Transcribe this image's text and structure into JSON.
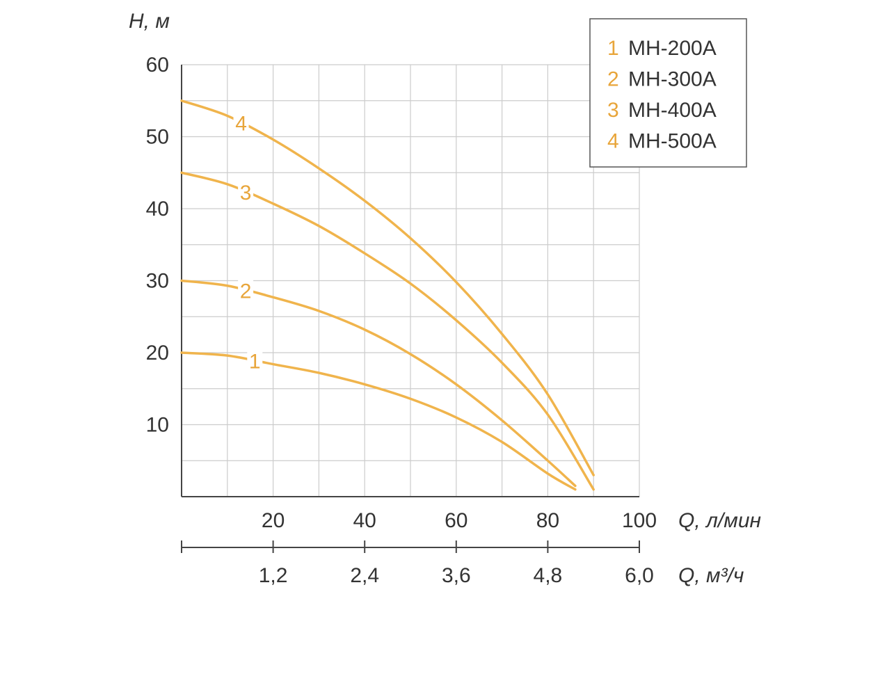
{
  "colors": {
    "curve": "#f0b44c",
    "curve_label": "#e8a53a",
    "grid": "#cccccc",
    "axis": "#444444",
    "text": "#333333"
  },
  "chart_data": {
    "type": "line",
    "ylabel": "H, м",
    "xlabel": "Q, л/мин",
    "xlabel2": "Q, м³/ч",
    "xlim": [
      0,
      100
    ],
    "ylim": [
      0,
      60
    ],
    "grid": true,
    "legend_position": "top-right",
    "yticks": [
      "10",
      "20",
      "30",
      "40",
      "50",
      "60"
    ],
    "xticks": [
      "20",
      "40",
      "60",
      "80",
      "100"
    ],
    "xticks2": [
      "1,2",
      "2,4",
      "3,6",
      "4,8",
      "6,0"
    ],
    "series": [
      {
        "name": "MH-200A",
        "label": "1",
        "x": [
          0,
          10,
          20,
          30,
          40,
          50,
          60,
          70,
          80,
          86
        ],
        "y": [
          20,
          19.6,
          18.4,
          17.2,
          15.6,
          13.6,
          11.0,
          7.6,
          3.2,
          1.0
        ]
      },
      {
        "name": "MH-300A",
        "label": "2",
        "x": [
          0,
          10,
          20,
          30,
          40,
          50,
          60,
          70,
          80,
          86
        ],
        "y": [
          30,
          29.3,
          27.7,
          25.8,
          23.2,
          19.8,
          15.6,
          10.6,
          5.0,
          1.5
        ]
      },
      {
        "name": "MH-400A",
        "label": "3",
        "x": [
          0,
          10,
          20,
          30,
          40,
          50,
          60,
          70,
          80,
          90
        ],
        "y": [
          45,
          43.4,
          40.7,
          37.6,
          33.8,
          29.6,
          24.5,
          18.6,
          11.4,
          1.0
        ]
      },
      {
        "name": "MH-500A",
        "label": "4",
        "x": [
          0,
          10,
          20,
          30,
          40,
          50,
          60,
          70,
          80,
          90
        ],
        "y": [
          55,
          52.9,
          49.6,
          45.6,
          41.1,
          35.9,
          29.8,
          22.6,
          14.2,
          3.0
        ]
      }
    ]
  }
}
